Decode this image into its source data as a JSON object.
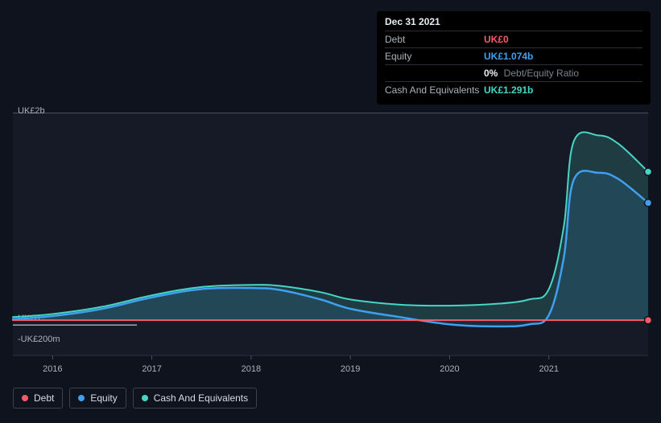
{
  "tooltip": {
    "date": "Dec 31 2021",
    "rows": [
      {
        "label": "Debt",
        "value": "UK£0",
        "color": "#f85b67"
      },
      {
        "label": "Equity",
        "value": "UK£1.074b",
        "color": "#3ea0ef"
      },
      {
        "label": "",
        "value": "0%",
        "sub": "Debt/Equity Ratio",
        "color": "#e8eef5"
      },
      {
        "label": "Cash And Equivalents",
        "value": "UK£1.291b",
        "color": "#46d6c4"
      }
    ]
  },
  "chart": {
    "type": "area",
    "background_color": "#0f131d",
    "plot_background": "#151a26",
    "grid_color": "#1f2530",
    "y_labels": [
      {
        "text": "UK£2b",
        "y": 2000
      },
      {
        "text": "UK£0",
        "y": 0
      },
      {
        "text": "-UK£200m",
        "y": -200
      }
    ],
    "y_range": [
      -200,
      2000
    ],
    "x_labels": [
      "2016",
      "2017",
      "2018",
      "2019",
      "2020",
      "2021"
    ],
    "x_range": [
      2015.6,
      2022.0
    ],
    "series": [
      {
        "name": "Cash And Equivalents",
        "color": "#46d6c4",
        "fill_opacity": 0.18,
        "stroke_width": 2,
        "points": [
          [
            2015.6,
            30
          ],
          [
            2016.0,
            60
          ],
          [
            2016.5,
            130
          ],
          [
            2017.0,
            240
          ],
          [
            2017.5,
            320
          ],
          [
            2018.0,
            340
          ],
          [
            2018.3,
            330
          ],
          [
            2018.7,
            270
          ],
          [
            2019.0,
            200
          ],
          [
            2019.5,
            150
          ],
          [
            2020.0,
            140
          ],
          [
            2020.5,
            160
          ],
          [
            2020.8,
            200
          ],
          [
            2021.0,
            300
          ],
          [
            2021.15,
            900
          ],
          [
            2021.25,
            1720
          ],
          [
            2021.5,
            1780
          ],
          [
            2021.7,
            1700
          ],
          [
            2022.0,
            1430
          ]
        ],
        "end_marker": true
      },
      {
        "name": "Equity",
        "color": "#3ea0ef",
        "fill_opacity": 0.12,
        "stroke_width": 2.5,
        "points": [
          [
            2015.6,
            10
          ],
          [
            2016.0,
            40
          ],
          [
            2016.5,
            110
          ],
          [
            2017.0,
            220
          ],
          [
            2017.5,
            300
          ],
          [
            2018.0,
            310
          ],
          [
            2018.3,
            290
          ],
          [
            2018.7,
            200
          ],
          [
            2019.0,
            110
          ],
          [
            2019.5,
            30
          ],
          [
            2020.0,
            -40
          ],
          [
            2020.5,
            -60
          ],
          [
            2020.8,
            -40
          ],
          [
            2021.0,
            50
          ],
          [
            2021.15,
            600
          ],
          [
            2021.25,
            1350
          ],
          [
            2021.5,
            1420
          ],
          [
            2021.7,
            1360
          ],
          [
            2022.0,
            1130
          ]
        ],
        "end_marker": true
      },
      {
        "name": "Debt",
        "color": "#f85b67",
        "fill_opacity": 0,
        "stroke_width": 2,
        "points": [
          [
            2015.6,
            0
          ],
          [
            2017.0,
            0
          ],
          [
            2022.0,
            0
          ]
        ],
        "end_marker": true
      }
    ],
    "white_underline_end": 2016.85
  },
  "legend": [
    {
      "label": "Debt",
      "color": "#f85b67"
    },
    {
      "label": "Equity",
      "color": "#3ea0ef"
    },
    {
      "label": "Cash And Equivalents",
      "color": "#46d6c4"
    }
  ]
}
